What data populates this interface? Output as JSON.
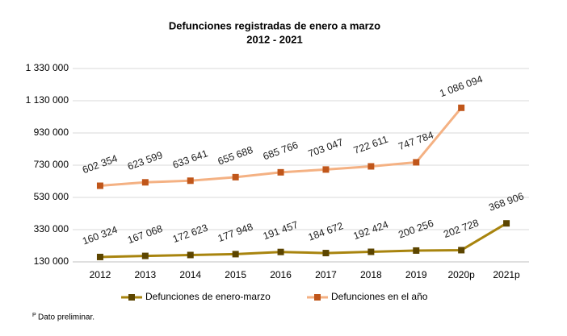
{
  "chart_data": {
    "type": "line",
    "title": "Defunciones registradas de enero a marzo",
    "subtitle": "2012 - 2021",
    "categories": [
      "2012",
      "2013",
      "2014",
      "2015",
      "2016",
      "2017",
      "2018",
      "2019",
      "2020p",
      "2021p"
    ],
    "series": [
      {
        "name": "Defunciones de enero-marzo",
        "color": "#a8840e",
        "marker_color": "#5c4500",
        "values": [
          160324,
          167068,
          172623,
          177948,
          191457,
          184672,
          192424,
          200256,
          202728,
          368906
        ],
        "value_labels": [
          "160 324",
          "167 068",
          "172 623",
          "177 948",
          "191 457",
          "184 672",
          "192 424",
          "200 256",
          "202 728",
          "368 906"
        ]
      },
      {
        "name": "Defunciones en el año",
        "color": "#f4b183",
        "marker_color": "#c0561a",
        "values": [
          602354,
          623599,
          633641,
          655688,
          685766,
          703047,
          722611,
          747784,
          1086094,
          null
        ],
        "value_labels": [
          "602 354",
          "623 599",
          "633 641",
          "655 688",
          "685 766",
          "703 047",
          "722 611",
          "747 784",
          "1 086 094",
          null
        ]
      }
    ],
    "ylim": [
      130000,
      1330000
    ],
    "yticks": [
      {
        "value": 130000,
        "label": "130 000"
      },
      {
        "value": 330000,
        "label": "330 000"
      },
      {
        "value": 530000,
        "label": "530 000"
      },
      {
        "value": 730000,
        "label": "730 000"
      },
      {
        "value": 930000,
        "label": "930 000"
      },
      {
        "value": 1130000,
        "label": "1 130 000"
      },
      {
        "value": 1330000,
        "label": "1 330 000"
      }
    ],
    "grid": true,
    "legend": "bottom",
    "footnote_mark": "P",
    "footnote": "Dato preliminar."
  }
}
